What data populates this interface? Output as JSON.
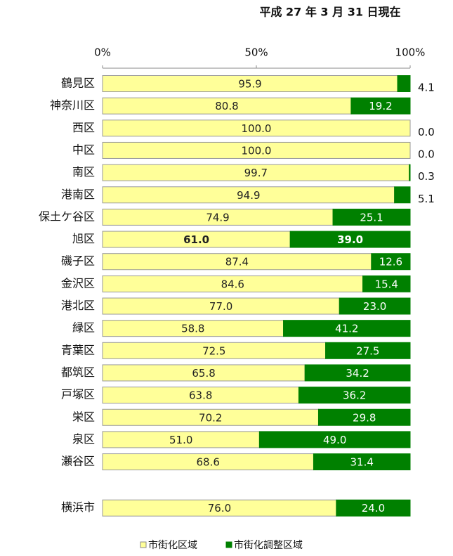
{
  "chart_data": {
    "type": "stacked_bar_horizontal",
    "subtitle": "平成 27 年 3 月 31 日現在",
    "categories": [
      "鶴見区",
      "神奈川区",
      "西区",
      "中区",
      "南区",
      "港南区",
      "保土ケ谷区",
      "旭区",
      "磯子区",
      "金沢区",
      "港北区",
      "緑区",
      "青葉区",
      "都筑区",
      "戸塚区",
      "栄区",
      "泉区",
      "瀬谷区",
      "横浜市"
    ],
    "series": [
      {
        "name": "市街化区域",
        "color": "#ffff99",
        "values": [
          95.9,
          80.8,
          100.0,
          100.0,
          99.7,
          94.9,
          74.9,
          61.0,
          87.4,
          84.6,
          77.0,
          58.8,
          72.5,
          65.8,
          63.8,
          70.2,
          51.0,
          68.6,
          76.0
        ],
        "value_labels": [
          "95.9",
          "80.8",
          "100.0",
          "100.0",
          "99.7",
          "94.9",
          "74.9",
          "61.0",
          "87.4",
          "84.6",
          "77.0",
          "58.8",
          "72.5",
          "65.8",
          "63.8",
          "70.2",
          "51.0",
          "68.6",
          "76.0"
        ]
      },
      {
        "name": "市街化調整区域",
        "color": "#008000",
        "values": [
          4.1,
          19.2,
          0.0,
          0.0,
          0.3,
          5.1,
          25.1,
          39.0,
          12.6,
          15.4,
          23.0,
          41.2,
          27.5,
          34.2,
          36.2,
          29.8,
          49.0,
          31.4,
          24.0
        ],
        "value_labels": [
          "4.1",
          "19.2",
          "0.0",
          "0.0",
          "0.3",
          "5.1",
          "25.1",
          "39.0",
          "12.6",
          "15.4",
          "23.0",
          "41.2",
          "27.5",
          "34.2",
          "36.2",
          "29.8",
          "49.0",
          "31.4",
          "24.0"
        ]
      }
    ],
    "xlim": [
      0,
      100
    ],
    "xticks": [
      {
        "value": 0,
        "label": "0%"
      },
      {
        "value": 50,
        "label": "50%"
      },
      {
        "value": 100,
        "label": "100%"
      }
    ],
    "highlight": "旭区",
    "legend": "bottom"
  }
}
